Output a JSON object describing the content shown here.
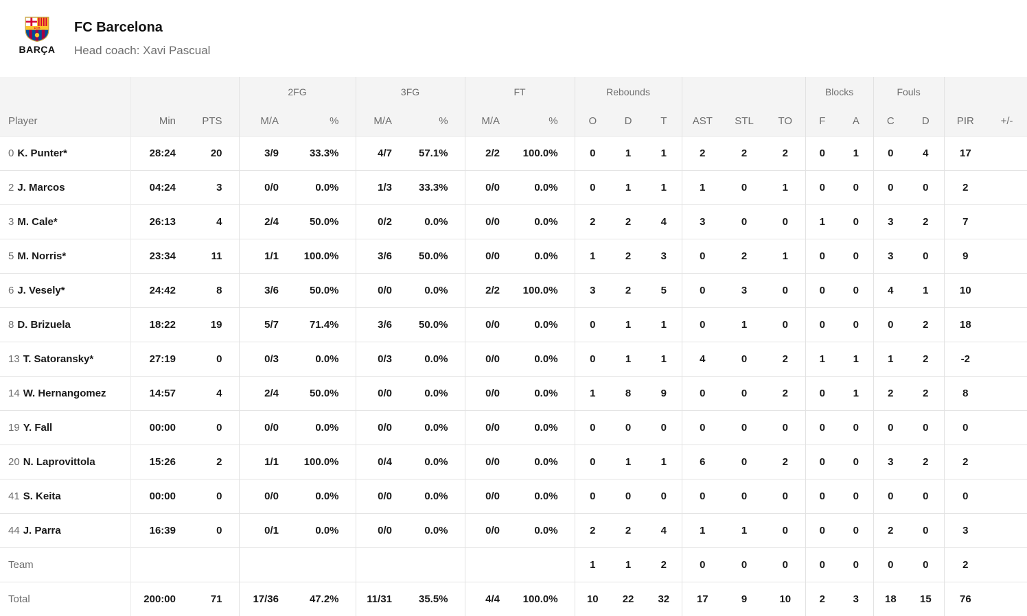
{
  "header": {
    "team_name": "FC Barcelona",
    "coach_line": "Head coach: Xavi Pascual",
    "logo_caption": "BARÇA",
    "logo_monogram": "FCB"
  },
  "colors": {
    "header_bg": "#f4f4f4",
    "border": "#e4e4e4",
    "text_dark": "#191919",
    "text_gray": "#6e6e6e",
    "crest_blue": "#004d98",
    "crest_garnet": "#a50044",
    "crest_gold": "#fdc52c",
    "crest_red": "#d50032"
  },
  "table": {
    "group_headers": {
      "fg2": "2FG",
      "fg3": "3FG",
      "ft": "FT",
      "rebounds": "Rebounds",
      "blocks": "Blocks",
      "fouls": "Fouls"
    },
    "columns": {
      "player": "Player",
      "min": "Min",
      "pts": "PTS",
      "ma": "M/A",
      "pct": "%",
      "o": "O",
      "d": "D",
      "t": "T",
      "ast": "AST",
      "stl": "STL",
      "to": "TO",
      "f": "F",
      "a": "A",
      "c": "C",
      "pir": "PIR",
      "plusminus": "+/-"
    },
    "rows": [
      {
        "number": "0",
        "name": "K. Punter*",
        "min": "28:24",
        "pts": "20",
        "fg2_ma": "3/9",
        "fg2_pct": "33.3%",
        "fg3_ma": "4/7",
        "fg3_pct": "57.1%",
        "ft_ma": "2/2",
        "ft_pct": "100.0%",
        "reb_o": "0",
        "reb_d": "1",
        "reb_t": "1",
        "ast": "2",
        "stl": "2",
        "to": "2",
        "blk_f": "0",
        "blk_a": "1",
        "foul_c": "0",
        "foul_d": "4",
        "pir": "17",
        "pm": ""
      },
      {
        "number": "2",
        "name": "J. Marcos",
        "min": "04:24",
        "pts": "3",
        "fg2_ma": "0/0",
        "fg2_pct": "0.0%",
        "fg3_ma": "1/3",
        "fg3_pct": "33.3%",
        "ft_ma": "0/0",
        "ft_pct": "0.0%",
        "reb_o": "0",
        "reb_d": "1",
        "reb_t": "1",
        "ast": "1",
        "stl": "0",
        "to": "1",
        "blk_f": "0",
        "blk_a": "0",
        "foul_c": "0",
        "foul_d": "0",
        "pir": "2",
        "pm": ""
      },
      {
        "number": "3",
        "name": "M. Cale*",
        "min": "26:13",
        "pts": "4",
        "fg2_ma": "2/4",
        "fg2_pct": "50.0%",
        "fg3_ma": "0/2",
        "fg3_pct": "0.0%",
        "ft_ma": "0/0",
        "ft_pct": "0.0%",
        "reb_o": "2",
        "reb_d": "2",
        "reb_t": "4",
        "ast": "3",
        "stl": "0",
        "to": "0",
        "blk_f": "1",
        "blk_a": "0",
        "foul_c": "3",
        "foul_d": "2",
        "pir": "7",
        "pm": ""
      },
      {
        "number": "5",
        "name": "M. Norris*",
        "min": "23:34",
        "pts": "11",
        "fg2_ma": "1/1",
        "fg2_pct": "100.0%",
        "fg3_ma": "3/6",
        "fg3_pct": "50.0%",
        "ft_ma": "0/0",
        "ft_pct": "0.0%",
        "reb_o": "1",
        "reb_d": "2",
        "reb_t": "3",
        "ast": "0",
        "stl": "2",
        "to": "1",
        "blk_f": "0",
        "blk_a": "0",
        "foul_c": "3",
        "foul_d": "0",
        "pir": "9",
        "pm": ""
      },
      {
        "number": "6",
        "name": "J. Vesely*",
        "min": "24:42",
        "pts": "8",
        "fg2_ma": "3/6",
        "fg2_pct": "50.0%",
        "fg3_ma": "0/0",
        "fg3_pct": "0.0%",
        "ft_ma": "2/2",
        "ft_pct": "100.0%",
        "reb_o": "3",
        "reb_d": "2",
        "reb_t": "5",
        "ast": "0",
        "stl": "3",
        "to": "0",
        "blk_f": "0",
        "blk_a": "0",
        "foul_c": "4",
        "foul_d": "1",
        "pir": "10",
        "pm": ""
      },
      {
        "number": "8",
        "name": "D. Brizuela",
        "min": "18:22",
        "pts": "19",
        "fg2_ma": "5/7",
        "fg2_pct": "71.4%",
        "fg3_ma": "3/6",
        "fg3_pct": "50.0%",
        "ft_ma": "0/0",
        "ft_pct": "0.0%",
        "reb_o": "0",
        "reb_d": "1",
        "reb_t": "1",
        "ast": "0",
        "stl": "1",
        "to": "0",
        "blk_f": "0",
        "blk_a": "0",
        "foul_c": "0",
        "foul_d": "2",
        "pir": "18",
        "pm": ""
      },
      {
        "number": "13",
        "name": "T. Satoransky*",
        "min": "27:19",
        "pts": "0",
        "fg2_ma": "0/3",
        "fg2_pct": "0.0%",
        "fg3_ma": "0/3",
        "fg3_pct": "0.0%",
        "ft_ma": "0/0",
        "ft_pct": "0.0%",
        "reb_o": "0",
        "reb_d": "1",
        "reb_t": "1",
        "ast": "4",
        "stl": "0",
        "to": "2",
        "blk_f": "1",
        "blk_a": "1",
        "foul_c": "1",
        "foul_d": "2",
        "pir": "-2",
        "pm": ""
      },
      {
        "number": "14",
        "name": "W. Hernangomez",
        "min": "14:57",
        "pts": "4",
        "fg2_ma": "2/4",
        "fg2_pct": "50.0%",
        "fg3_ma": "0/0",
        "fg3_pct": "0.0%",
        "ft_ma": "0/0",
        "ft_pct": "0.0%",
        "reb_o": "1",
        "reb_d": "8",
        "reb_t": "9",
        "ast": "0",
        "stl": "0",
        "to": "2",
        "blk_f": "0",
        "blk_a": "1",
        "foul_c": "2",
        "foul_d": "2",
        "pir": "8",
        "pm": ""
      },
      {
        "number": "19",
        "name": "Y. Fall",
        "min": "00:00",
        "pts": "0",
        "fg2_ma": "0/0",
        "fg2_pct": "0.0%",
        "fg3_ma": "0/0",
        "fg3_pct": "0.0%",
        "ft_ma": "0/0",
        "ft_pct": "0.0%",
        "reb_o": "0",
        "reb_d": "0",
        "reb_t": "0",
        "ast": "0",
        "stl": "0",
        "to": "0",
        "blk_f": "0",
        "blk_a": "0",
        "foul_c": "0",
        "foul_d": "0",
        "pir": "0",
        "pm": ""
      },
      {
        "number": "20",
        "name": "N. Laprovittola",
        "min": "15:26",
        "pts": "2",
        "fg2_ma": "1/1",
        "fg2_pct": "100.0%",
        "fg3_ma": "0/4",
        "fg3_pct": "0.0%",
        "ft_ma": "0/0",
        "ft_pct": "0.0%",
        "reb_o": "0",
        "reb_d": "1",
        "reb_t": "1",
        "ast": "6",
        "stl": "0",
        "to": "2",
        "blk_f": "0",
        "blk_a": "0",
        "foul_c": "3",
        "foul_d": "2",
        "pir": "2",
        "pm": ""
      },
      {
        "number": "41",
        "name": "S. Keita",
        "min": "00:00",
        "pts": "0",
        "fg2_ma": "0/0",
        "fg2_pct": "0.0%",
        "fg3_ma": "0/0",
        "fg3_pct": "0.0%",
        "ft_ma": "0/0",
        "ft_pct": "0.0%",
        "reb_o": "0",
        "reb_d": "0",
        "reb_t": "0",
        "ast": "0",
        "stl": "0",
        "to": "0",
        "blk_f": "0",
        "blk_a": "0",
        "foul_c": "0",
        "foul_d": "0",
        "pir": "0",
        "pm": ""
      },
      {
        "number": "44",
        "name": "J. Parra",
        "min": "16:39",
        "pts": "0",
        "fg2_ma": "0/1",
        "fg2_pct": "0.0%",
        "fg3_ma": "0/0",
        "fg3_pct": "0.0%",
        "ft_ma": "0/0",
        "ft_pct": "0.0%",
        "reb_o": "2",
        "reb_d": "2",
        "reb_t": "4",
        "ast": "1",
        "stl": "1",
        "to": "0",
        "blk_f": "0",
        "blk_a": "0",
        "foul_c": "2",
        "foul_d": "0",
        "pir": "3",
        "pm": ""
      }
    ],
    "team_row": {
      "label": "Team",
      "min": "",
      "pts": "",
      "fg2_ma": "",
      "fg2_pct": "",
      "fg3_ma": "",
      "fg3_pct": "",
      "ft_ma": "",
      "ft_pct": "",
      "reb_o": "1",
      "reb_d": "1",
      "reb_t": "2",
      "ast": "0",
      "stl": "0",
      "to": "0",
      "blk_f": "0",
      "blk_a": "0",
      "foul_c": "0",
      "foul_d": "0",
      "pir": "2",
      "pm": ""
    },
    "total_row": {
      "label": "Total",
      "min": "200:00",
      "pts": "71",
      "fg2_ma": "17/36",
      "fg2_pct": "47.2%",
      "fg3_ma": "11/31",
      "fg3_pct": "35.5%",
      "ft_ma": "4/4",
      "ft_pct": "100.0%",
      "reb_o": "10",
      "reb_d": "22",
      "reb_t": "32",
      "ast": "17",
      "stl": "9",
      "to": "10",
      "blk_f": "2",
      "blk_a": "3",
      "foul_c": "18",
      "foul_d": "15",
      "pir": "76",
      "pm": ""
    }
  }
}
